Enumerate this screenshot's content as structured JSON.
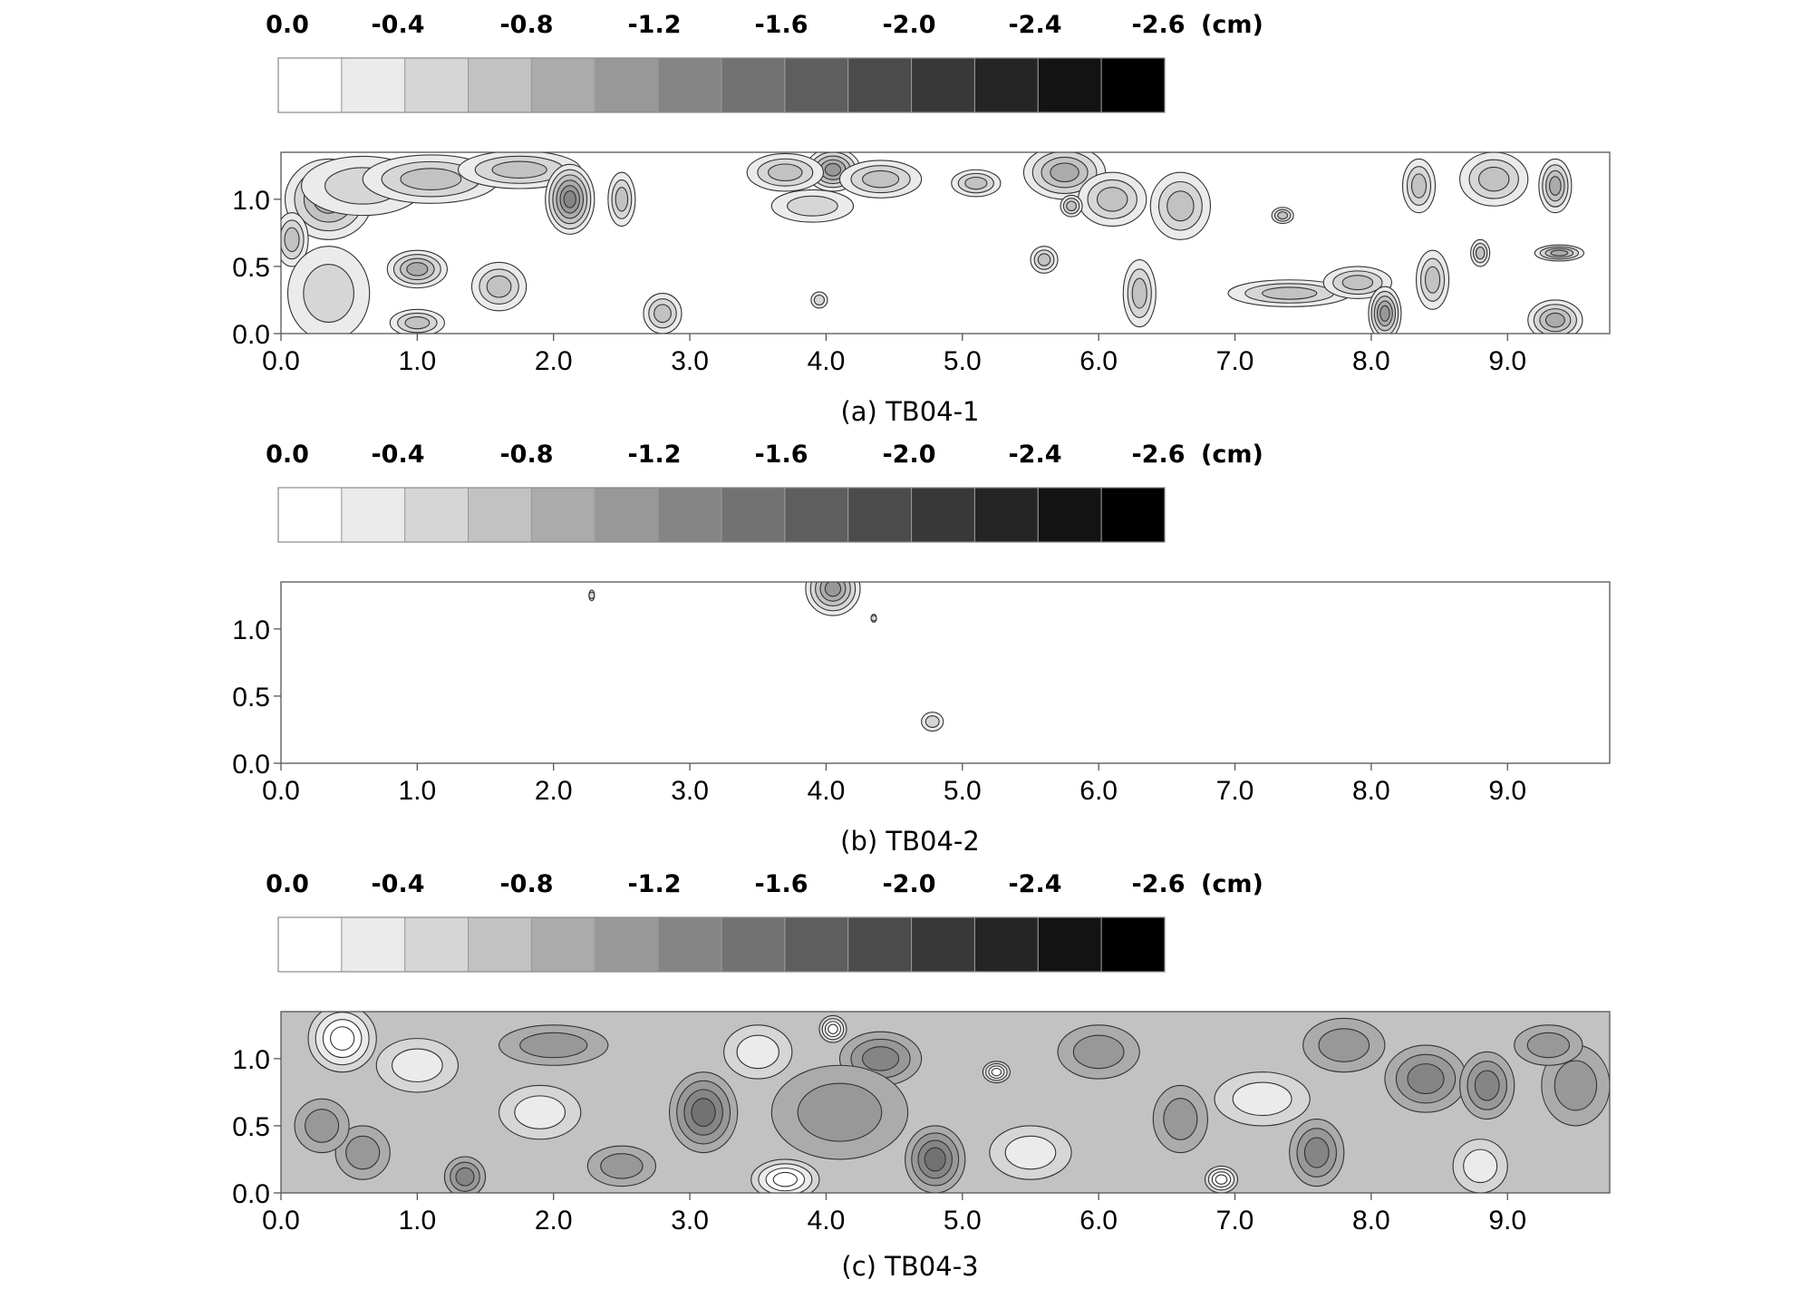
{
  "chart_data": [
    {
      "type": "heatmap",
      "title": "(a) TB04-1",
      "colorbar": {
        "tick_labels": [
          "0.0",
          "-0.4",
          "-0.8",
          "-1.2",
          "-1.6",
          "-2.0",
          "-2.4",
          "-2.6"
        ],
        "unit": "(cm)",
        "levels": 14,
        "colors": [
          "#ffffff",
          "#ebebeb",
          "#d6d6d6",
          "#c2c2c2",
          "#ababab",
          "#989898",
          "#858585",
          "#727272",
          "#5e5e5e",
          "#4b4b4b",
          "#383838",
          "#252525",
          "#131313",
          "#000000"
        ]
      },
      "x_ticks": [
        "0.0",
        "1.0",
        "2.0",
        "3.0",
        "4.0",
        "5.0",
        "6.0",
        "7.0",
        "8.0",
        "9.0"
      ],
      "y_ticks": [
        "0.0",
        "0.5",
        "1.0"
      ],
      "xlim": [
        0,
        9.75
      ],
      "ylim": [
        0,
        1.35
      ],
      "features": [
        {
          "x": 0.35,
          "y": 1.0,
          "rx": 0.32,
          "ry": 0.3,
          "depth": 0.5
        },
        {
          "x": 0.08,
          "y": 0.7,
          "rx": 0.12,
          "ry": 0.2,
          "depth": 0.45
        },
        {
          "x": 0.6,
          "y": 1.1,
          "rx": 0.45,
          "ry": 0.22,
          "depth": 0.3
        },
        {
          "x": 1.1,
          "y": 1.15,
          "rx": 0.5,
          "ry": 0.18,
          "depth": 0.32
        },
        {
          "x": 1.75,
          "y": 1.22,
          "rx": 0.45,
          "ry": 0.14,
          "depth": 0.4
        },
        {
          "x": 1.0,
          "y": 0.48,
          "rx": 0.22,
          "ry": 0.14,
          "depth": 0.6
        },
        {
          "x": 1.6,
          "y": 0.35,
          "rx": 0.2,
          "ry": 0.18,
          "depth": 0.35
        },
        {
          "x": 0.35,
          "y": 0.3,
          "rx": 0.3,
          "ry": 0.35,
          "depth": 0.3
        },
        {
          "x": 2.12,
          "y": 1.0,
          "rx": 0.18,
          "ry": 0.26,
          "depth": 0.95
        },
        {
          "x": 2.5,
          "y": 1.0,
          "rx": 0.1,
          "ry": 0.2,
          "depth": 0.35
        },
        {
          "x": 2.8,
          "y": 0.15,
          "rx": 0.14,
          "ry": 0.15,
          "depth": 0.4
        },
        {
          "x": 1.0,
          "y": 0.08,
          "rx": 0.2,
          "ry": 0.1,
          "depth": 0.35
        },
        {
          "x": 4.05,
          "y": 1.22,
          "rx": 0.2,
          "ry": 0.16,
          "depth": 0.85
        },
        {
          "x": 3.7,
          "y": 1.2,
          "rx": 0.28,
          "ry": 0.14,
          "depth": 0.4
        },
        {
          "x": 4.4,
          "y": 1.15,
          "rx": 0.3,
          "ry": 0.14,
          "depth": 0.35
        },
        {
          "x": 3.9,
          "y": 0.95,
          "rx": 0.3,
          "ry": 0.12,
          "depth": 0.3
        },
        {
          "x": 5.1,
          "y": 1.12,
          "rx": 0.18,
          "ry": 0.1,
          "depth": 0.35
        },
        {
          "x": 5.75,
          "y": 1.2,
          "rx": 0.3,
          "ry": 0.2,
          "depth": 0.65
        },
        {
          "x": 6.1,
          "y": 1.0,
          "rx": 0.25,
          "ry": 0.2,
          "depth": 0.35
        },
        {
          "x": 6.6,
          "y": 0.95,
          "rx": 0.22,
          "ry": 0.25,
          "depth": 0.35
        },
        {
          "x": 5.6,
          "y": 0.55,
          "rx": 0.1,
          "ry": 0.1,
          "depth": 0.4
        },
        {
          "x": 6.3,
          "y": 0.3,
          "rx": 0.12,
          "ry": 0.25,
          "depth": 0.35
        },
        {
          "x": 7.4,
          "y": 0.3,
          "rx": 0.45,
          "ry": 0.1,
          "depth": 0.35
        },
        {
          "x": 7.9,
          "y": 0.38,
          "rx": 0.25,
          "ry": 0.12,
          "depth": 0.45
        },
        {
          "x": 8.1,
          "y": 0.15,
          "rx": 0.12,
          "ry": 0.2,
          "depth": 0.85
        },
        {
          "x": 8.45,
          "y": 0.4,
          "rx": 0.12,
          "ry": 0.22,
          "depth": 0.35
        },
        {
          "x": 8.35,
          "y": 1.1,
          "rx": 0.12,
          "ry": 0.2,
          "depth": 0.35
        },
        {
          "x": 8.9,
          "y": 1.15,
          "rx": 0.25,
          "ry": 0.2,
          "depth": 0.38
        },
        {
          "x": 9.35,
          "y": 1.1,
          "rx": 0.12,
          "ry": 0.2,
          "depth": 0.6
        },
        {
          "x": 9.38,
          "y": 0.6,
          "rx": 0.18,
          "ry": 0.06,
          "depth": 0.7
        },
        {
          "x": 9.35,
          "y": 0.1,
          "rx": 0.2,
          "ry": 0.15,
          "depth": 0.6
        },
        {
          "x": 8.8,
          "y": 0.6,
          "rx": 0.07,
          "ry": 0.1,
          "depth": 0.35
        },
        {
          "x": 7.35,
          "y": 0.88,
          "rx": 0.08,
          "ry": 0.06,
          "depth": 0.35
        },
        {
          "x": 3.95,
          "y": 0.25,
          "rx": 0.06,
          "ry": 0.06,
          "depth": 0.25
        },
        {
          "x": 5.8,
          "y": 0.95,
          "rx": 0.08,
          "ry": 0.08,
          "depth": 0.35
        }
      ]
    },
    {
      "type": "heatmap",
      "title": "(b) TB04-2",
      "colorbar": {
        "tick_labels": [
          "0.0",
          "-0.4",
          "-0.8",
          "-1.2",
          "-1.6",
          "-2.0",
          "-2.4",
          "-2.6"
        ],
        "unit": "(cm)",
        "levels": 14,
        "colors": [
          "#ffffff",
          "#ebebeb",
          "#d6d6d6",
          "#c2c2c2",
          "#ababab",
          "#989898",
          "#858585",
          "#727272",
          "#5e5e5e",
          "#4b4b4b",
          "#383838",
          "#252525",
          "#131313",
          "#000000"
        ]
      },
      "x_ticks": [
        "0.0",
        "1.0",
        "2.0",
        "3.0",
        "4.0",
        "5.0",
        "6.0",
        "7.0",
        "8.0",
        "9.0"
      ],
      "y_ticks": [
        "0.0",
        "0.5",
        "1.0"
      ],
      "xlim": [
        0,
        9.75
      ],
      "ylim": [
        0,
        1.35
      ],
      "features": [
        {
          "x": 4.05,
          "y": 1.3,
          "rx": 0.2,
          "ry": 0.2,
          "depth": 0.75
        },
        {
          "x": 4.78,
          "y": 0.31,
          "rx": 0.08,
          "ry": 0.07,
          "depth": 0.3
        },
        {
          "x": 2.28,
          "y": 1.25,
          "rx": 0.02,
          "ry": 0.04,
          "depth": 0.15
        },
        {
          "x": 4.35,
          "y": 1.08,
          "rx": 0.02,
          "ry": 0.03,
          "depth": 0.15
        }
      ]
    },
    {
      "type": "heatmap",
      "title": "(c) TB04-3",
      "colorbar": {
        "tick_labels": [
          "0.0",
          "-0.4",
          "-0.8",
          "-1.2",
          "-1.6",
          "-2.0",
          "-2.4",
          "-2.6"
        ],
        "unit": "(cm)",
        "levels": 14,
        "colors": [
          "#ffffff",
          "#ebebeb",
          "#d6d6d6",
          "#c2c2c2",
          "#ababab",
          "#989898",
          "#858585",
          "#727272",
          "#5e5e5e",
          "#4b4b4b",
          "#383838",
          "#252525",
          "#131313",
          "#000000"
        ]
      },
      "x_ticks": [
        "0.0",
        "1.0",
        "2.0",
        "3.0",
        "4.0",
        "5.0",
        "6.0",
        "7.0",
        "8.0",
        "9.0"
      ],
      "y_ticks": [
        "0.0",
        "0.5",
        "1.0"
      ],
      "xlim": [
        0,
        9.75
      ],
      "ylim": [
        0,
        1.35
      ],
      "base_level": 3,
      "features": [
        {
          "x": 0.45,
          "y": 1.15,
          "rx": 0.25,
          "ry": 0.25,
          "depth": -0.6
        },
        {
          "x": 3.7,
          "y": 0.1,
          "rx": 0.25,
          "ry": 0.15,
          "depth": -0.6
        },
        {
          "x": 4.05,
          "y": 1.22,
          "rx": 0.1,
          "ry": 0.1,
          "depth": -0.6
        },
        {
          "x": 5.25,
          "y": 0.9,
          "rx": 0.1,
          "ry": 0.08,
          "depth": -0.6
        },
        {
          "x": 6.9,
          "y": 0.1,
          "rx": 0.12,
          "ry": 0.1,
          "depth": -0.5
        },
        {
          "x": 3.1,
          "y": 0.6,
          "rx": 0.25,
          "ry": 0.3,
          "depth": 0.5
        },
        {
          "x": 4.8,
          "y": 0.25,
          "rx": 0.22,
          "ry": 0.25,
          "depth": 0.5
        },
        {
          "x": 4.4,
          "y": 1.0,
          "rx": 0.3,
          "ry": 0.2,
          "depth": 0.45
        },
        {
          "x": 4.1,
          "y": 0.6,
          "rx": 0.5,
          "ry": 0.35,
          "depth": 0.3
        },
        {
          "x": 1.35,
          "y": 0.12,
          "rx": 0.15,
          "ry": 0.15,
          "depth": 0.45
        },
        {
          "x": 0.6,
          "y": 0.3,
          "rx": 0.2,
          "ry": 0.2,
          "depth": 0.3
        },
        {
          "x": 2.0,
          "y": 1.1,
          "rx": 0.4,
          "ry": 0.15,
          "depth": 0.3
        },
        {
          "x": 8.4,
          "y": 0.85,
          "rx": 0.3,
          "ry": 0.25,
          "depth": 0.45
        },
        {
          "x": 8.85,
          "y": 0.8,
          "rx": 0.2,
          "ry": 0.25,
          "depth": 0.4
        },
        {
          "x": 7.6,
          "y": 0.3,
          "rx": 0.2,
          "ry": 0.25,
          "depth": 0.35
        },
        {
          "x": 9.5,
          "y": 0.8,
          "rx": 0.25,
          "ry": 0.3,
          "depth": 0.3
        },
        {
          "x": 6.6,
          "y": 0.55,
          "rx": 0.2,
          "ry": 0.25,
          "depth": 0.25
        },
        {
          "x": 1.9,
          "y": 0.6,
          "rx": 0.3,
          "ry": 0.2,
          "depth": -0.25
        },
        {
          "x": 7.2,
          "y": 0.7,
          "rx": 0.35,
          "ry": 0.2,
          "depth": -0.25
        },
        {
          "x": 5.5,
          "y": 0.3,
          "rx": 0.3,
          "ry": 0.2,
          "depth": -0.25
        },
        {
          "x": 8.8,
          "y": 0.2,
          "rx": 0.2,
          "ry": 0.2,
          "depth": -0.25
        },
        {
          "x": 9.3,
          "y": 1.1,
          "rx": 0.25,
          "ry": 0.15,
          "depth": 0.2
        },
        {
          "x": 2.5,
          "y": 0.2,
          "rx": 0.25,
          "ry": 0.15,
          "depth": 0.3
        },
        {
          "x": 6.0,
          "y": 1.05,
          "rx": 0.3,
          "ry": 0.2,
          "depth": 0.25
        },
        {
          "x": 0.3,
          "y": 0.5,
          "rx": 0.2,
          "ry": 0.2,
          "depth": 0.2
        },
        {
          "x": 7.8,
          "y": 1.1,
          "rx": 0.3,
          "ry": 0.2,
          "depth": 0.2
        },
        {
          "x": 3.5,
          "y": 1.05,
          "rx": 0.25,
          "ry": 0.2,
          "depth": -0.2
        },
        {
          "x": 1.0,
          "y": 0.95,
          "rx": 0.3,
          "ry": 0.2,
          "depth": -0.2
        }
      ]
    }
  ]
}
